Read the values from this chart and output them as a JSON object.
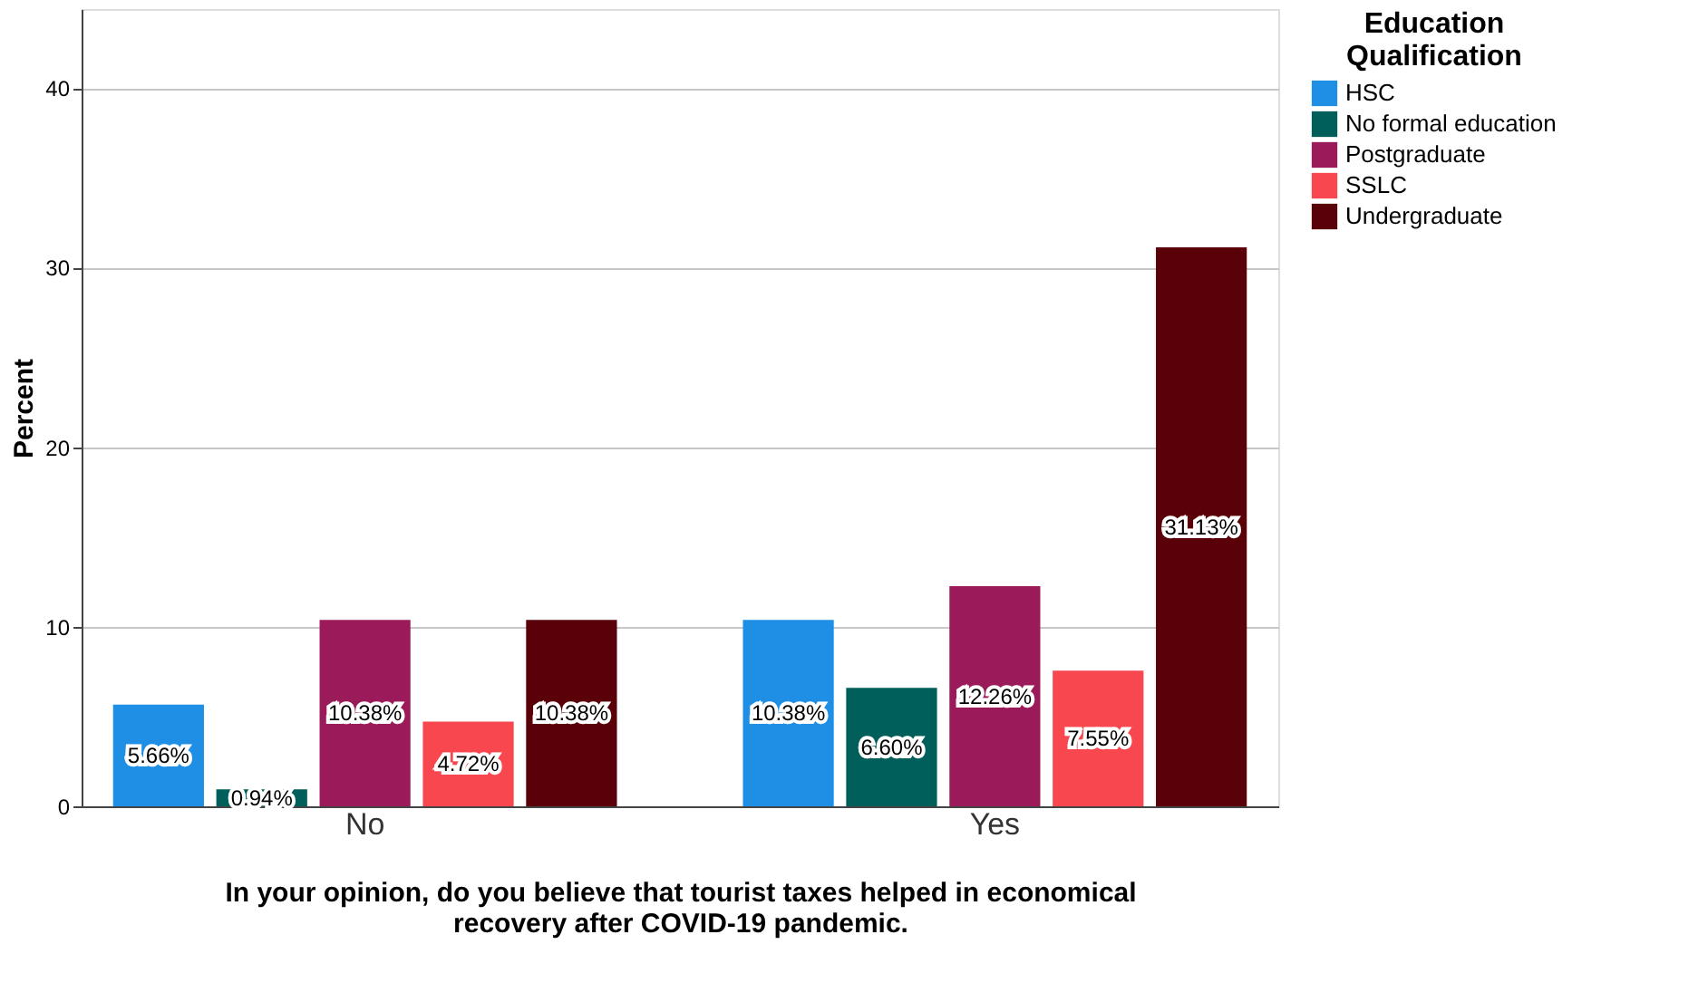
{
  "chart_data": {
    "type": "bar",
    "xlabel": "In your opinion, do you believe that tourist taxes helped in economical recovery after COVID-19 pandemic.",
    "ylabel": "Percent",
    "legend_title": "Education Qualification",
    "categories": [
      "No",
      "Yes"
    ],
    "series": [
      {
        "name": "HSC",
        "color": "#1f8fe6",
        "values": [
          5.66,
          10.38
        ],
        "value_labels": [
          "5.66%",
          "10.38%"
        ]
      },
      {
        "name": "No formal education",
        "color": "#005f5a",
        "values": [
          0.94,
          6.6
        ],
        "value_labels": [
          "0.94%",
          "6.60%"
        ]
      },
      {
        "name": "Postgraduate",
        "color": "#9b1b5a",
        "values": [
          10.38,
          12.26
        ],
        "value_labels": [
          "10.38%",
          "12.26%"
        ]
      },
      {
        "name": "SSLC",
        "color": "#f8474f",
        "values": [
          4.72,
          7.55
        ],
        "value_labels": [
          "4.72%",
          "7.55%"
        ]
      },
      {
        "name": "Undergraduate",
        "color": "#5a0008",
        "values": [
          10.38,
          31.13
        ],
        "value_labels": [
          "10.38%",
          "31.13%"
        ]
      }
    ],
    "ylim": [
      0,
      44.4
    ],
    "yticks": [
      0,
      10,
      20,
      30,
      40
    ],
    "grid": "y",
    "legend": "top right"
  }
}
